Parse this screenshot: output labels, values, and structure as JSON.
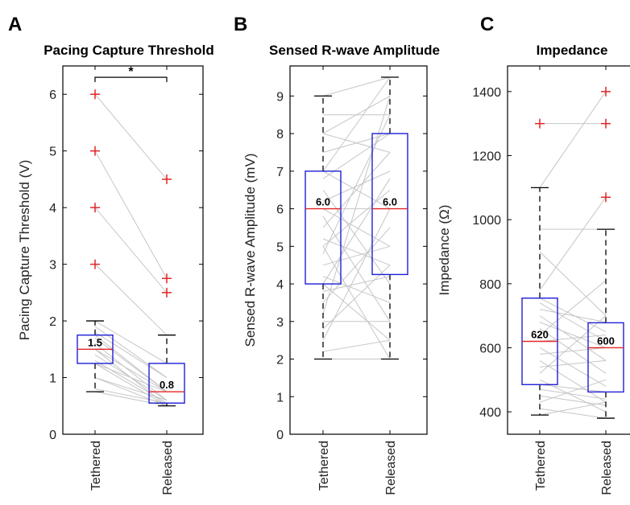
{
  "chart_data": [
    {
      "type": "box",
      "panel_letter": "A",
      "title": "Pacing Capture Threshold",
      "ylabel": "Pacing Capture Threshold (V)",
      "categories": [
        "Tethered",
        "Released"
      ],
      "ylim": [
        0,
        6.5
      ],
      "yticks": [
        0,
        1,
        2,
        3,
        4,
        5,
        6
      ],
      "boxes": [
        {
          "category": "Tethered",
          "whisker_low": 0.75,
          "q1": 1.25,
          "median": 1.5,
          "q3": 1.75,
          "whisker_high": 2.0,
          "median_label": "1.5",
          "outliers": [
            3,
            4,
            5,
            6
          ]
        },
        {
          "category": "Released",
          "whisker_low": 0.5,
          "q1": 0.55,
          "median": 0.75,
          "q3": 1.25,
          "whisker_high": 1.75,
          "median_label": "0.8",
          "outliers": [
            2.5,
            2.75,
            4.5
          ]
        }
      ],
      "paired_lines": [
        [
          6,
          4.5
        ],
        [
          5,
          2.75
        ],
        [
          4,
          2.5
        ],
        [
          3,
          1.75
        ],
        [
          2,
          1.25
        ],
        [
          1.9,
          1.0
        ],
        [
          1.8,
          1.0
        ],
        [
          1.75,
          0.75
        ],
        [
          1.7,
          0.75
        ],
        [
          1.6,
          0.6
        ],
        [
          1.5,
          0.75
        ],
        [
          1.5,
          0.5
        ],
        [
          1.4,
          0.6
        ],
        [
          1.3,
          0.55
        ],
        [
          1.25,
          0.75
        ],
        [
          1.25,
          0.5
        ],
        [
          1.0,
          0.6
        ],
        [
          1.0,
          0.5
        ],
        [
          0.8,
          0.55
        ],
        [
          0.75,
          0.5
        ]
      ],
      "significance": {
        "label": "*",
        "between": [
          "Tethered",
          "Released"
        ],
        "y": 6.3
      }
    },
    {
      "type": "box",
      "panel_letter": "B",
      "title": "Sensed R-wave Amplitude",
      "ylabel": "Sensed R-wave Amplitude (mV)",
      "categories": [
        "Tethered",
        "Released"
      ],
      "ylim": [
        0,
        9.8
      ],
      "yticks": [
        0,
        1,
        2,
        3,
        4,
        5,
        6,
        7,
        8,
        9
      ],
      "boxes": [
        {
          "category": "Tethered",
          "whisker_low": 2.0,
          "q1": 4.0,
          "median": 6.0,
          "q3": 7.0,
          "whisker_high": 9.0,
          "median_label": "6.0",
          "outliers": []
        },
        {
          "category": "Released",
          "whisker_low": 2.0,
          "q1": 4.25,
          "median": 6.0,
          "q3": 8.0,
          "whisker_high": 9.5,
          "median_label": "6.0",
          "outliers": []
        }
      ],
      "paired_lines": [
        [
          9.0,
          9.5
        ],
        [
          8.5,
          8.5
        ],
        [
          8.0,
          9.0
        ],
        [
          8.0,
          7.5
        ],
        [
          7.5,
          8.0
        ],
        [
          7.0,
          9.5
        ],
        [
          7.0,
          6.0
        ],
        [
          6.8,
          8.0
        ],
        [
          6.5,
          4.0
        ],
        [
          6.2,
          7.0
        ],
        [
          6.0,
          6.0
        ],
        [
          6.0,
          5.0
        ],
        [
          5.8,
          3.0
        ],
        [
          5.5,
          7.5
        ],
        [
          5.2,
          4.5
        ],
        [
          5.0,
          6.5
        ],
        [
          5.0,
          2.0
        ],
        [
          4.8,
          8.5
        ],
        [
          4.5,
          5.0
        ],
        [
          4.2,
          3.5
        ],
        [
          4.0,
          6.8
        ],
        [
          4.0,
          2.5
        ],
        [
          3.8,
          4.2
        ],
        [
          3.5,
          5.5
        ],
        [
          3.2,
          9.0
        ],
        [
          3.0,
          3.0
        ],
        [
          2.8,
          4.5
        ],
        [
          2.5,
          6.0
        ],
        [
          2.2,
          2.5
        ],
        [
          2.0,
          2.0
        ]
      ]
    },
    {
      "type": "box",
      "panel_letter": "C",
      "title": "Impedance",
      "ylabel": "Impedance (Ω)",
      "categories": [
        "Tethered",
        "Released"
      ],
      "ylim": [
        330,
        1480
      ],
      "yticks": [
        400,
        600,
        800,
        1000,
        1200,
        1400
      ],
      "boxes": [
        {
          "category": "Tethered",
          "whisker_low": 390,
          "q1": 485,
          "median": 620,
          "q3": 755,
          "whisker_high": 1100,
          "median_label": "620",
          "outliers": [
            1300
          ]
        },
        {
          "category": "Released",
          "whisker_low": 380,
          "q1": 462,
          "median": 600,
          "q3": 678,
          "whisker_high": 970,
          "median_label": "600",
          "outliers": [
            1070,
            1300,
            1400
          ]
        }
      ],
      "paired_lines": [
        [
          1300,
          1300
        ],
        [
          1100,
          1400
        ],
        [
          970,
          970
        ],
        [
          900,
          700
        ],
        [
          780,
          1070
        ],
        [
          755,
          650
        ],
        [
          740,
          620
        ],
        [
          720,
          680
        ],
        [
          700,
          560
        ],
        [
          680,
          600
        ],
        [
          660,
          520
        ],
        [
          640,
          810
        ],
        [
          620,
          640
        ],
        [
          600,
          480
        ],
        [
          580,
          600
        ],
        [
          560,
          430
        ],
        [
          540,
          560
        ],
        [
          520,
          700
        ],
        [
          500,
          400
        ],
        [
          485,
          462
        ],
        [
          470,
          440
        ],
        [
          450,
          420
        ],
        [
          430,
          500
        ],
        [
          410,
          380
        ],
        [
          390,
          430
        ]
      ]
    }
  ]
}
